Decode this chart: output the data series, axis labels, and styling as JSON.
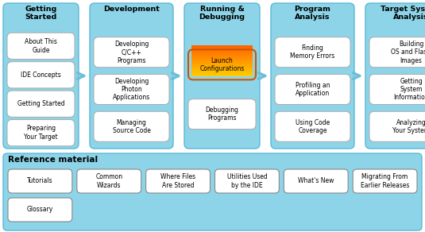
{
  "bg_color": "#ffffff",
  "col_bg": "#8dd4e8",
  "box_fill": "#ffffff",
  "arrow_color": "#6bbfd8",
  "text_color": "#000000",
  "figw": 5.35,
  "figh": 2.92,
  "dpi": 100,
  "columns": [
    {
      "title": "Getting\nStarted",
      "items": [
        "About This\nGuide",
        "IDE Concepts",
        "Getting Started",
        "Preparing\nYour Target"
      ],
      "highlight_idx": -1
    },
    {
      "title": "Development",
      "items": [
        "Developing\nC/C++\nPrograms",
        "Developing\nPhoton\nApplications",
        "Managing\nSource Code"
      ],
      "highlight_idx": -1
    },
    {
      "title": "Running &\nDebugging",
      "items": [
        "Launch\nConfigurations",
        "Debugging\nPrograms"
      ],
      "highlight_idx": 0
    },
    {
      "title": "Program\nAnalysis",
      "items": [
        "Finding\nMemory Errors",
        "Profiling an\nApplication",
        "Using Code\nCoverage"
      ],
      "highlight_idx": -1
    },
    {
      "title": "Target System\nAnalysis",
      "items": [
        "Building\nOS and Flash\nImages",
        "Getting\nSystem\nInformation",
        "Analyzing\nYour System"
      ],
      "highlight_idx": -1
    }
  ],
  "ref_items": [
    {
      "text": "Tutorials",
      "row": 0
    },
    {
      "text": "Common\nWizards",
      "row": 0
    },
    {
      "text": "Where Files\nAre Stored",
      "row": 0
    },
    {
      "text": "Utilities Used\nby the IDE",
      "row": 0
    },
    {
      "text": "What's New",
      "row": 0
    },
    {
      "text": "Migrating From\nEarlier Releases",
      "row": 0
    },
    {
      "text": "Glossary",
      "row": 1
    }
  ]
}
